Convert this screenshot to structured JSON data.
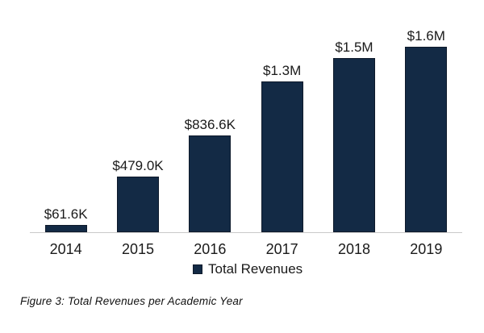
{
  "chart_data": {
    "type": "bar",
    "categories": [
      "2014",
      "2015",
      "2016",
      "2017",
      "2018",
      "2019"
    ],
    "series": [
      {
        "name": "Total Revenues",
        "values_thousands_usd": [
          61.6,
          479.0,
          836.6,
          1300,
          1500,
          1600
        ],
        "value_labels": [
          "$61.6K",
          "$479.0K",
          "$836.6K",
          "$1.3M",
          "$1.5M",
          "$1.6M"
        ]
      }
    ],
    "title": "",
    "xlabel": "",
    "ylabel": "",
    "ylim_thousands_usd": [
      0,
      1600
    ],
    "grid": false,
    "y_axis_visible": false,
    "legend_position": "bottom-center",
    "legend_label": "Total Revenues",
    "colors": {
      "bar_fill": "#132A45",
      "bar_border": "#0E1A2B",
      "axis_line": "#C9C9C9",
      "text": "#1A1A1A"
    }
  },
  "caption": "Figure 3: Total Revenues per Academic Year"
}
